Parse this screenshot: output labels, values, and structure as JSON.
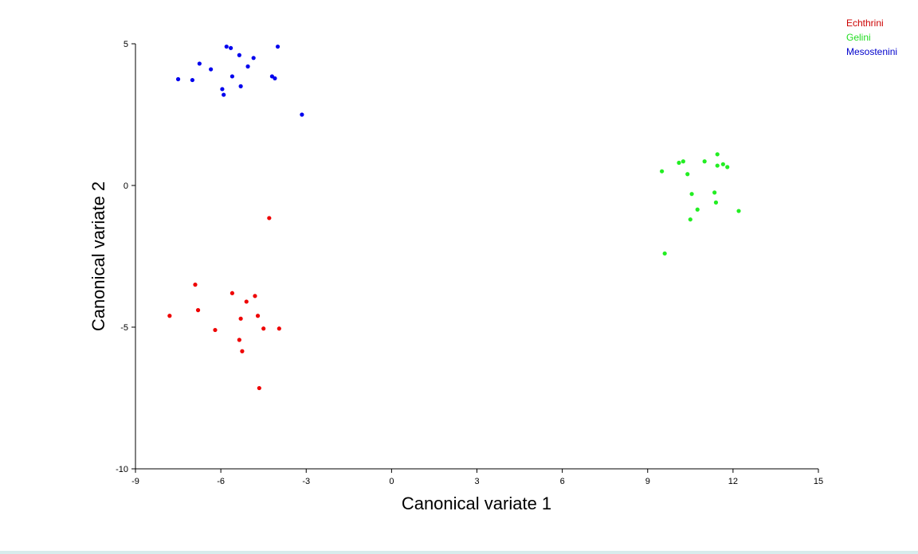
{
  "chart_data": {
    "type": "scatter",
    "xlabel": "Canonical variate 1",
    "ylabel": "Canonical variate 2",
    "xlim": [
      -9,
      15
    ],
    "ylim": [
      -10,
      5
    ],
    "xticks": [
      "-9",
      "-6",
      "-3",
      "0",
      "3",
      "6",
      "9",
      "12",
      "15"
    ],
    "yticks": [
      "5",
      "0",
      "-5",
      "-10"
    ],
    "xtick_values": [
      -9,
      -6,
      -3,
      0,
      3,
      6,
      9,
      12,
      15
    ],
    "ytick_values": [
      5,
      0,
      -5,
      -10
    ],
    "grid": false,
    "legend_position": "top-right",
    "series": [
      {
        "name": "Echthrini",
        "color": "#ee0000",
        "points": [
          [
            -4.3,
            -1.15
          ],
          [
            -6.9,
            -3.5
          ],
          [
            -6.8,
            -4.4
          ],
          [
            -7.8,
            -4.6
          ],
          [
            -6.2,
            -5.1
          ],
          [
            -5.6,
            -3.8
          ],
          [
            -5.1,
            -4.1
          ],
          [
            -4.8,
            -3.9
          ],
          [
            -5.3,
            -4.7
          ],
          [
            -4.7,
            -4.6
          ],
          [
            -4.5,
            -5.05
          ],
          [
            -3.95,
            -5.05
          ],
          [
            -5.35,
            -5.45
          ],
          [
            -5.25,
            -5.85
          ],
          [
            -4.65,
            -7.15
          ]
        ]
      },
      {
        "name": "Gelini",
        "color": "#22ee22",
        "points": [
          [
            11.45,
            1.1
          ],
          [
            10.25,
            0.85
          ],
          [
            10.1,
            0.8
          ],
          [
            11.0,
            0.85
          ],
          [
            11.65,
            0.75
          ],
          [
            11.45,
            0.7
          ],
          [
            11.8,
            0.65
          ],
          [
            9.5,
            0.5
          ],
          [
            10.4,
            0.4
          ],
          [
            10.55,
            -0.3
          ],
          [
            11.35,
            -0.25
          ],
          [
            11.4,
            -0.6
          ],
          [
            10.75,
            -0.85
          ],
          [
            12.2,
            -0.9
          ],
          [
            10.5,
            -1.2
          ],
          [
            9.6,
            -2.4
          ]
        ]
      },
      {
        "name": "Mesostenini",
        "color": "#0000ee",
        "points": [
          [
            -5.8,
            4.9
          ],
          [
            -5.65,
            4.85
          ],
          [
            -4.0,
            4.9
          ],
          [
            -5.35,
            4.6
          ],
          [
            -4.85,
            4.5
          ],
          [
            -6.75,
            4.3
          ],
          [
            -5.05,
            4.2
          ],
          [
            -6.35,
            4.1
          ],
          [
            -4.2,
            3.85
          ],
          [
            -4.1,
            3.78
          ],
          [
            -5.6,
            3.85
          ],
          [
            -7.5,
            3.75
          ],
          [
            -7.0,
            3.72
          ],
          [
            -5.3,
            3.5
          ],
          [
            -5.95,
            3.4
          ],
          [
            -5.9,
            3.2
          ],
          [
            -3.15,
            2.5
          ]
        ]
      }
    ]
  }
}
